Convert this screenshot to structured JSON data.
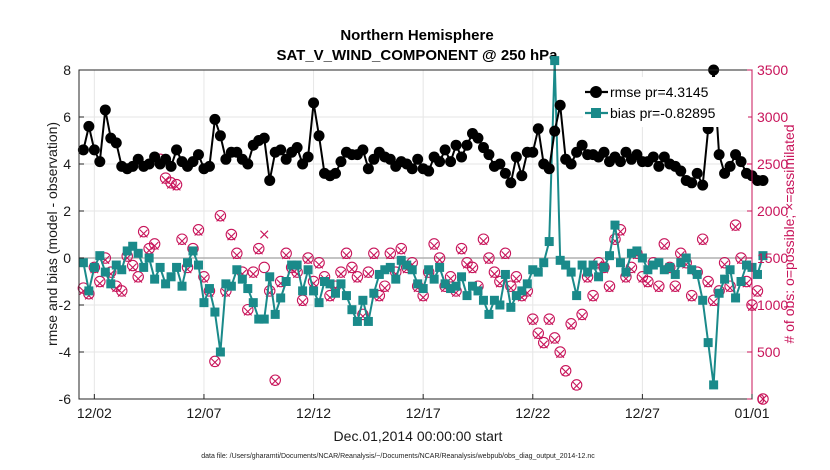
{
  "chart_data": {
    "type": "line",
    "title": [
      "Northern Hemisphere",
      "SAT_V_WIND_COMPONENT @ 250 hPa"
    ],
    "xlabel": "Dec.01,2014 00:00:00 start",
    "ylabel": "rmse and bias (model - observation)",
    "ylabel_right": "# of obs: o=possible; ×=assimilated",
    "footnote": "data file: /Users/gharamti/Documents/NCAR/Reanalysis/~/Documents/NCAR/Reanalysis/webpub/obs_diag_output_2014-12.nc",
    "x_tick_labels": [
      "12/02",
      "12/07",
      "12/12",
      "12/17",
      "12/22",
      "12/27",
      "01/01"
    ],
    "x_tick_days": [
      1,
      6,
      11,
      16,
      21,
      26,
      31
    ],
    "x_range_days": [
      0.3,
      31.0
    ],
    "ylim": [
      -6,
      8
    ],
    "y_ticks": [
      -6,
      -4,
      -2,
      0,
      2,
      4,
      6,
      8
    ],
    "ylim_right": [
      0,
      3500
    ],
    "y_ticks_right": [
      0,
      500,
      1000,
      1500,
      2000,
      2500,
      3000,
      3500
    ],
    "grid": true,
    "legend_position": "top-right",
    "samples_per_day": 4,
    "x_start_day": 0.5,
    "series": [
      {
        "name": "rmse pr=4.3145",
        "axis": "left",
        "color": "#000000",
        "marker": "circle",
        "values": [
          4.6,
          5.6,
          4.6,
          4.1,
          6.3,
          5.1,
          4.9,
          3.9,
          3.8,
          3.9,
          4.2,
          3.9,
          4.0,
          4.3,
          4.0,
          4.2,
          3.9,
          4.6,
          4.1,
          3.9,
          4.1,
          4.4,
          3.8,
          3.9,
          5.9,
          5.2,
          4.2,
          4.5,
          4.5,
          4.2,
          4.0,
          4.8,
          5.0,
          5.1,
          3.3,
          4.5,
          4.6,
          4.2,
          4.5,
          4.7,
          4.0,
          4.3,
          6.6,
          5.2,
          3.6,
          3.5,
          3.6,
          4.1,
          4.5,
          4.4,
          4.4,
          4.6,
          3.8,
          4.2,
          4.5,
          4.3,
          4.2,
          3.9,
          4.1,
          4.0,
          3.8,
          4.2,
          3.8,
          3.7,
          4.3,
          4.1,
          4.6,
          4.1,
          4.8,
          4.3,
          4.8,
          5.3,
          5.1,
          4.7,
          4.4,
          3.9,
          4.0,
          3.6,
          3.2,
          4.3,
          3.5,
          4.5,
          4.5,
          5.5,
          4.0,
          3.8,
          5.4,
          6.5,
          4.2,
          4.0,
          4.5,
          4.8,
          4.4,
          4.4,
          4.3,
          4.5,
          4.1,
          4.3,
          4.1,
          4.5,
          4.2,
          4.4,
          4.1,
          4.1,
          4.3,
          3.9,
          4.3,
          4.0,
          3.9,
          3.7,
          3.3,
          3.2,
          3.6,
          3.1,
          5.5,
          8.0,
          4.4,
          3.6,
          3.9,
          4.4,
          4.1,
          3.6,
          3.5,
          3.3,
          3.3
        ]
      },
      {
        "name": "bias pr=-0.82895",
        "axis": "left",
        "color": "#1a8a8a",
        "marker": "square",
        "values": [
          -0.2,
          -1.4,
          -0.4,
          0.1,
          -0.6,
          -1.1,
          -0.3,
          -0.5,
          0.3,
          0.5,
          0.2,
          -0.4,
          0.0,
          -0.9,
          -0.4,
          -1.1,
          -0.8,
          -0.4,
          -1.2,
          -0.2,
          0.3,
          -0.3,
          -1.9,
          -1.3,
          -2.3,
          -4.0,
          -1.1,
          -1.2,
          -0.5,
          -0.9,
          -1.3,
          -1.9,
          -2.6,
          -2.6,
          -0.8,
          -2.4,
          -1.7,
          -1.0,
          -0.3,
          -0.3,
          -1.4,
          -0.5,
          -1.4,
          -1.9,
          -1.0,
          -1.1,
          -1.5,
          -1.1,
          -1.6,
          -2.2,
          -2.7,
          -1.8,
          -2.7,
          -1.5,
          -0.7,
          -0.5,
          -0.4,
          -0.9,
          -0.1,
          -0.3,
          -0.5,
          -1.1,
          -1.3,
          -0.5,
          -0.9,
          -0.4,
          -1.1,
          -1.3,
          -1.2,
          -0.8,
          -1.6,
          -1.2,
          -1.4,
          -1.8,
          -2.4,
          -1.8,
          -2.0,
          -0.7,
          -2.1,
          -1.6,
          -1.4,
          -1.1,
          -0.5,
          -0.6,
          -0.2,
          0.7,
          8.4,
          -0.1,
          -0.3,
          -0.6,
          -1.6,
          -0.3,
          -0.6,
          -0.3,
          -0.8,
          -0.4,
          0.1,
          1.4,
          -0.2,
          -0.6,
          0.2,
          0.3,
          0.0,
          -0.5,
          -0.3,
          -0.2,
          -0.5,
          -0.4,
          -0.7,
          -0.2,
          0.0,
          -0.5,
          -0.7,
          -1.8,
          -3.6,
          -5.4,
          -1.5,
          -0.9,
          -0.5,
          -1.7,
          -1.0,
          -0.3,
          -0.4,
          -0.7,
          0.1
        ]
      },
      {
        "name": "possible",
        "axis": "right",
        "color": "#c8145a",
        "marker": "open-circle",
        "values": [
          1180,
          1120,
          1400,
          1250,
          1500,
          1350,
          1200,
          1150,
          1520,
          1420,
          1300,
          1780,
          1600,
          1650,
          2550,
          2350,
          2300,
          2280,
          1700,
          1400,
          1600,
          1800,
          1300,
          1150,
          400,
          1950,
          1150,
          1750,
          1550,
          1350,
          950,
          1350,
          1600,
          1400,
          1150,
          200,
          1250,
          1550,
          1400,
          1350,
          1050,
          1500,
          1250,
          1450,
          1300,
          1100,
          1200,
          1350,
          1550,
          1400,
          1300,
          900,
          1350,
          1550,
          1100,
          1200,
          1550,
          1350,
          1600,
          1400,
          1450,
          1200,
          1100,
          1350,
          1650,
          1500,
          1200,
          1300,
          1150,
          1600,
          1450,
          1400,
          1200,
          1700,
          1500,
          1350,
          1250,
          1550,
          1200,
          1300,
          1100,
          1150,
          850,
          700,
          600,
          850,
          650,
          500,
          300,
          800,
          150,
          900,
          1300,
          1100,
          1450,
          1400,
          1200,
          1700,
          1800,
          1300,
          1400,
          1550,
          1300,
          1250,
          1450,
          1200,
          1650,
          1400,
          1200,
          1550,
          1450,
          1100,
          1350,
          1700,
          1250,
          1050,
          1150,
          1450,
          1200,
          1850,
          1500,
          1250,
          1000,
          1150,
          0
        ]
      },
      {
        "name": "assimilated",
        "axis": "right",
        "color": "#c8145a",
        "marker": "x",
        "values": [
          1150,
          1100,
          1380,
          1230,
          1480,
          1330,
          1180,
          1130,
          1500,
          1400,
          1280,
          1760,
          1580,
          1630,
          2530,
          2330,
          2280,
          2260,
          1680,
          1380,
          1580,
          1780,
          1280,
          1130,
          390,
          1930,
          1130,
          1730,
          1530,
          1330,
          930,
          1330,
          1580,
          1750,
          1130,
          190,
          1230,
          1530,
          1380,
          1330,
          1030,
          1480,
          1230,
          1430,
          1280,
          1080,
          1180,
          1330,
          1530,
          1380,
          1280,
          880,
          1330,
          1530,
          1080,
          1180,
          1530,
          1330,
          1580,
          1380,
          1430,
          1180,
          1080,
          1330,
          1630,
          1480,
          1180,
          1280,
          1130,
          1580,
          1430,
          1380,
          1180,
          1680,
          1480,
          1330,
          1230,
          1530,
          1180,
          1280,
          1080,
          1130,
          830,
          680,
          580,
          830,
          630,
          480,
          290,
          780,
          140,
          880,
          1280,
          1080,
          1430,
          1380,
          1180,
          1680,
          1780,
          1280,
          1380,
          1530,
          1280,
          1230,
          1430,
          1180,
          1630,
          1380,
          1180,
          1530,
          1430,
          1080,
          1330,
          1680,
          1230,
          1030,
          1130,
          1430,
          1180,
          1830,
          1480,
          1230,
          980,
          1130,
          0
        ]
      }
    ]
  }
}
